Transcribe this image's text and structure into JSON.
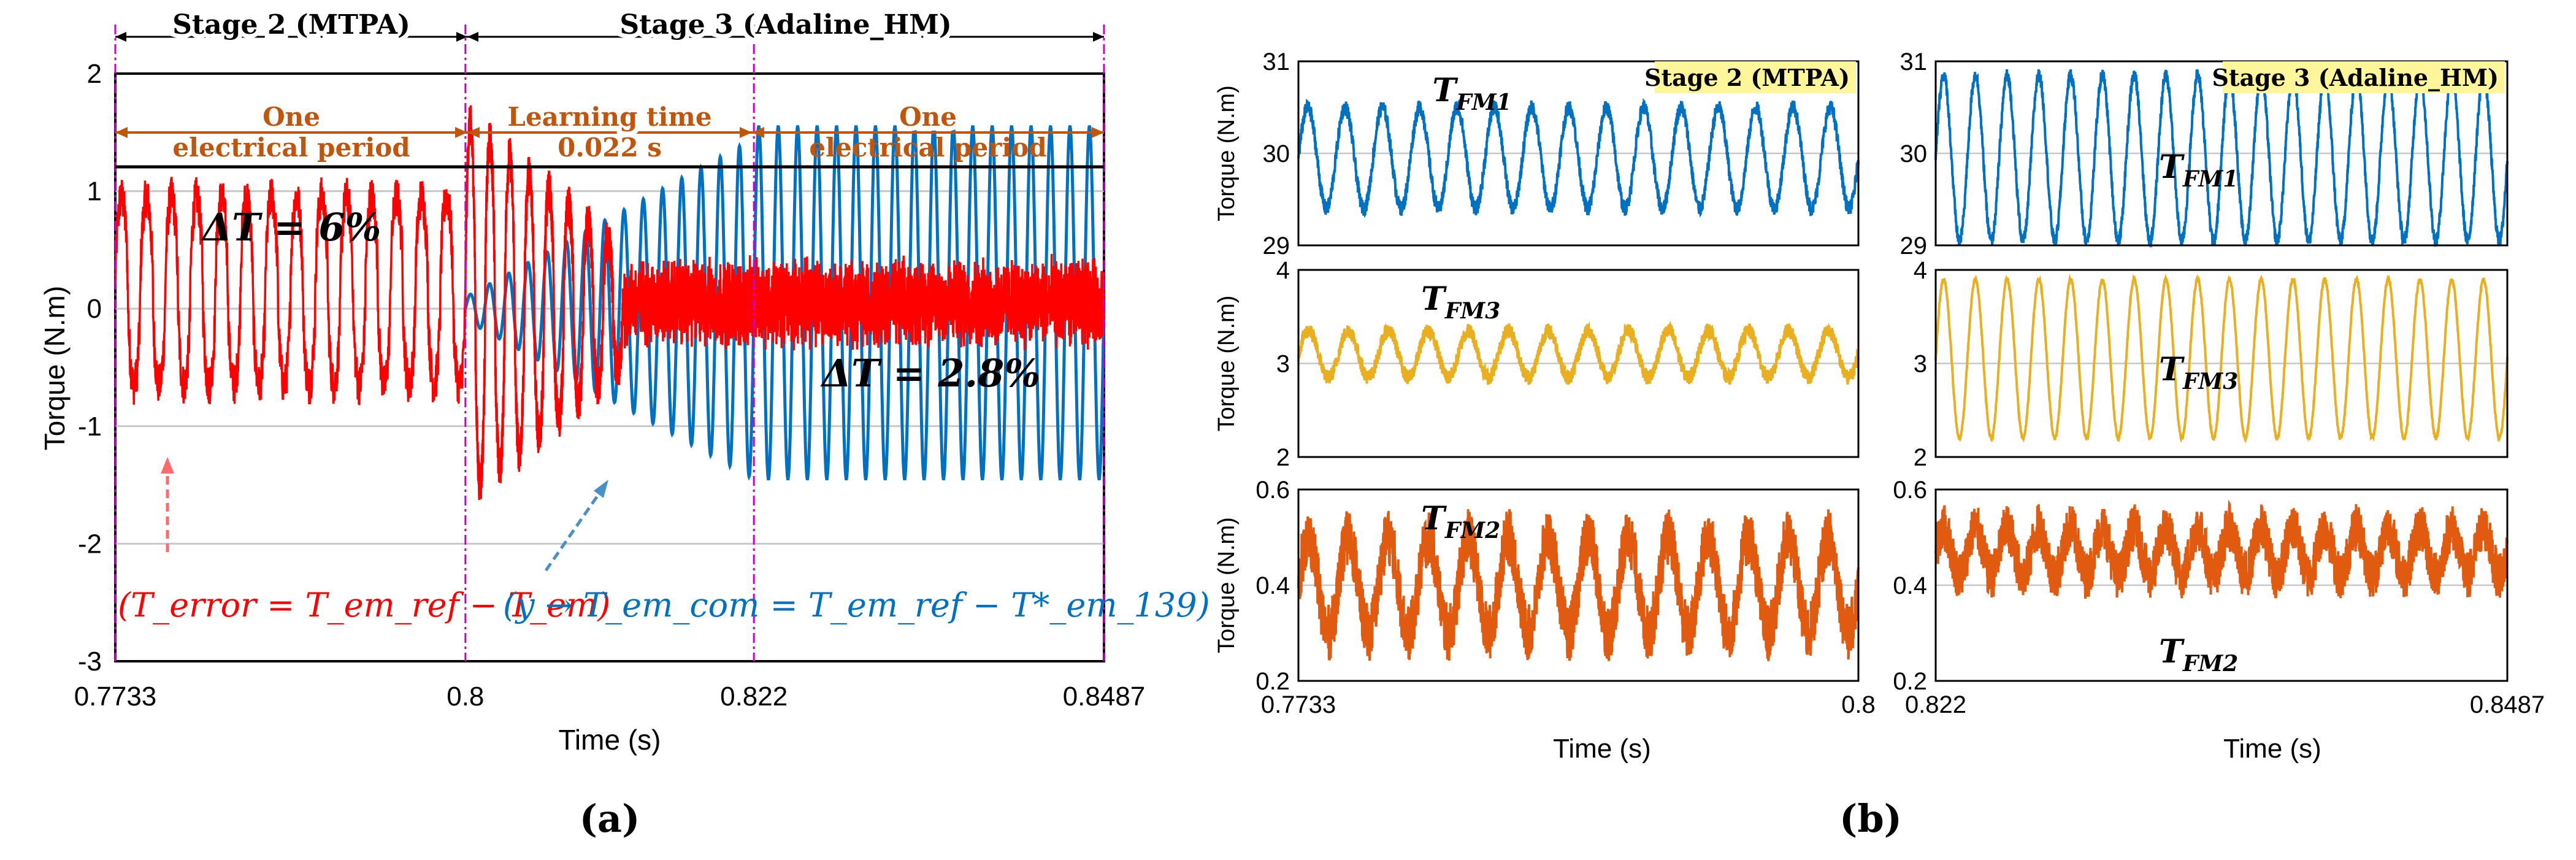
{
  "panel_labels": [
    "(a)",
    "(b)"
  ],
  "colors": {
    "red": "#ff0000",
    "blue": "#0070c0",
    "yellow": "#e8b020",
    "orange": "#e05a10",
    "stage_border": "#cc00cc",
    "annotation_orange": "#c0560e",
    "highlight": "#fff59a"
  },
  "panel_a": {
    "stages": [
      "Stage 2 (MTPA)",
      "Stage 3 (Adaline_HM)"
    ],
    "period_labels": [
      {
        "line1": "One",
        "line2": "electrical period"
      },
      {
        "line1": "Learning time",
        "line2": "0.022 s"
      },
      {
        "line1": "One",
        "line2": "electrical period"
      }
    ],
    "delta_labels": [
      "ΔT = 6%",
      "ΔT = 2.8%"
    ],
    "equations": {
      "error": "(T_error = T_em_ref − T_em)",
      "com": "(y → T_em_com = T_em_ref − T*_em_139)"
    }
  },
  "chart_data": [
    {
      "type": "line",
      "id": "panel-a",
      "xlabel": "Time (s)",
      "ylabel": "Torque (N.m)",
      "xlim": [
        0.7733,
        0.8487
      ],
      "ylim": [
        -3,
        2
      ],
      "xticks": [
        "0.7733",
        "0.8",
        "0.822",
        "0.8487"
      ],
      "yticks": [
        "-3",
        "-2",
        "-1",
        "0",
        "1",
        "2"
      ],
      "grid": true,
      "series": [
        {
          "name": "T_error",
          "color": "#ff0000",
          "segments": [
            {
              "x": [
                0.7733,
                0.8
              ],
              "amplitude": 0.8,
              "offset": 0.15,
              "cycles": 14
            },
            {
              "x": [
                0.8,
                0.812
              ],
              "amplitude_start": 1.6,
              "amplitude_end": 0.5,
              "cycles": 8
            },
            {
              "x": [
                0.812,
                0.8487
              ],
              "amplitude": 0.3,
              "offset": 0.05,
              "noise": 0.12
            }
          ]
        },
        {
          "name": "y",
          "color": "#0070c0",
          "segments": [
            {
              "x": [
                0.8,
                0.822
              ],
              "amplitude_start": 0.1,
              "amplitude_end": 1.45,
              "cycles": 15
            },
            {
              "x": [
                0.822,
                0.8487
              ],
              "amplitude": 1.5,
              "offset": 0.05,
              "cycles": 18
            }
          ]
        }
      ]
    },
    {
      "type": "line",
      "id": "panel-b-left",
      "xlabel": "Time (s)",
      "xlim": [
        0.7733,
        0.8
      ],
      "xticks": [
        "0.7733",
        "0.8"
      ],
      "badge": "Stage 2 (MTPA)",
      "subplots": [
        {
          "name": "T_FM1",
          "ylabel": "Torque (N.m)",
          "ylim": [
            29,
            31
          ],
          "yticks": [
            "29",
            "30",
            "31"
          ],
          "center": 29.95,
          "amplitude": 0.55,
          "noise": 0.08,
          "cycles": 15,
          "color": "#0070c0"
        },
        {
          "name": "T_FM3",
          "ylabel": "Torque (N.m)",
          "ylim": [
            2,
            4
          ],
          "yticks": [
            "2",
            "3",
            "4"
          ],
          "center": 3.1,
          "amplitude": 0.25,
          "noise": 0.08,
          "cycles": 14,
          "color": "#e8b020"
        },
        {
          "name": "T_FM2",
          "ylabel": "Torque (N.m)",
          "ylim": [
            0.2,
            0.6
          ],
          "yticks": [
            "0.2",
            "0.4",
            "0.6"
          ],
          "center": 0.4,
          "amplitude": 0.1,
          "noise": 0.06,
          "cycles": 14,
          "color": "#e05a10"
        }
      ]
    },
    {
      "type": "line",
      "id": "panel-b-right",
      "xlabel": "Time (s)",
      "xlim": [
        0.822,
        0.8487
      ],
      "xticks": [
        "0.822",
        "0.8487"
      ],
      "badge": "Stage 3 (Adaline_HM)",
      "subplots": [
        {
          "name": "T_FM1",
          "ylim": [
            29,
            31
          ],
          "yticks": [
            "29",
            "30",
            "31"
          ],
          "center": 29.95,
          "amplitude": 0.9,
          "noise": 0.07,
          "cycles": 18,
          "color": "#0070c0"
        },
        {
          "name": "T_FM3",
          "ylim": [
            2,
            4
          ],
          "yticks": [
            "2",
            "3",
            "4"
          ],
          "center": 3.05,
          "amplitude": 0.85,
          "noise": 0.02,
          "cycles": 18,
          "color": "#e8b020"
        },
        {
          "name": "T_FM2",
          "ylim": [
            0.2,
            0.6
          ],
          "yticks": [
            "0.2",
            "0.4",
            "0.6"
          ],
          "center": 0.47,
          "amplitude": 0.05,
          "noise": 0.05,
          "cycles": 18,
          "color": "#e05a10"
        }
      ]
    }
  ]
}
